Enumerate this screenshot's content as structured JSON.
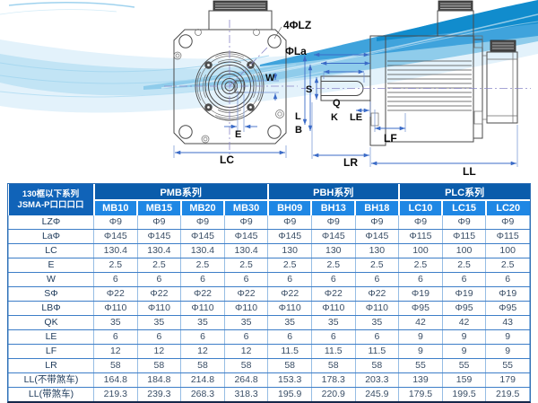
{
  "drawings": {
    "front": {
      "bolt_holes": "4ΦLZ",
      "boss_dia": "ΦLa",
      "key_width": "W",
      "key_offset": "E",
      "frame_size": "LC"
    },
    "side": {
      "shaft_dia": "S",
      "key_q": "Q",
      "key_k": "K",
      "pilot_le": "LE",
      "dim_l": "L",
      "dim_b": "B",
      "flange_lf": "LF",
      "shaft_lr": "LR",
      "body_ll": "LL"
    }
  },
  "table": {
    "corner": {
      "line1": "130框以下系列",
      "line2": "JSMA-P口口口口"
    },
    "series": [
      {
        "label": "PMB系列",
        "span": 4
      },
      {
        "label": "PBH系列",
        "span": 3
      },
      {
        "label": "PLC系列",
        "span": 3
      }
    ],
    "models": [
      "MB10",
      "MB15",
      "MB20",
      "MB30",
      "BH09",
      "BH13",
      "BH18",
      "LC10",
      "LC15",
      "LC20"
    ],
    "rows": [
      {
        "label": "LZΦ",
        "values": [
          "Φ9",
          "Φ9",
          "Φ9",
          "Φ9",
          "Φ9",
          "Φ9",
          "Φ9",
          "Φ9",
          "Φ9",
          "Φ9"
        ]
      },
      {
        "label": "LaΦ",
        "values": [
          "Φ145",
          "Φ145",
          "Φ145",
          "Φ145",
          "Φ145",
          "Φ145",
          "Φ145",
          "Φ115",
          "Φ115",
          "Φ115"
        ]
      },
      {
        "label": "LC",
        "values": [
          "130.4",
          "130.4",
          "130.4",
          "130.4",
          "130",
          "130",
          "130",
          "100",
          "100",
          "100"
        ]
      },
      {
        "label": "E",
        "values": [
          "2.5",
          "2.5",
          "2.5",
          "2.5",
          "2.5",
          "2.5",
          "2.5",
          "2.5",
          "2.5",
          "2.5"
        ]
      },
      {
        "label": "W",
        "values": [
          "6",
          "6",
          "6",
          "6",
          "6",
          "6",
          "6",
          "6",
          "6",
          "6"
        ]
      },
      {
        "label": "SΦ",
        "values": [
          "Φ22",
          "Φ22",
          "Φ22",
          "Φ22",
          "Φ22",
          "Φ22",
          "Φ22",
          "Φ19",
          "Φ19",
          "Φ19"
        ]
      },
      {
        "label": "LBΦ",
        "values": [
          "Φ110",
          "Φ110",
          "Φ110",
          "Φ110",
          "Φ110",
          "Φ110",
          "Φ110",
          "Φ95",
          "Φ95",
          "Φ95"
        ]
      },
      {
        "label": "QK",
        "values": [
          "35",
          "35",
          "35",
          "35",
          "35",
          "35",
          "35",
          "42",
          "42",
          "43"
        ]
      },
      {
        "label": "LE",
        "values": [
          "6",
          "6",
          "6",
          "6",
          "6",
          "6",
          "6",
          "9",
          "9",
          "9"
        ]
      },
      {
        "label": "LF",
        "values": [
          "12",
          "12",
          "12",
          "12",
          "11.5",
          "11.5",
          "11.5",
          "9",
          "9",
          "9"
        ]
      },
      {
        "label": "LR",
        "values": [
          "58",
          "58",
          "58",
          "58",
          "58",
          "58",
          "58",
          "55",
          "55",
          "55"
        ]
      },
      {
        "label": "LL(不带煞车)",
        "values": [
          "164.8",
          "184.8",
          "214.8",
          "264.8",
          "153.3",
          "178.3",
          "203.3",
          "139",
          "159",
          "179"
        ]
      },
      {
        "label": "LL(带煞车)",
        "values": [
          "219.3",
          "239.3",
          "268.3",
          "318.3",
          "195.9",
          "220.9",
          "245.9",
          "179.5",
          "199.5",
          "219.5"
        ]
      }
    ]
  },
  "colors": {
    "header_corner": "#1063b8",
    "header_series": "#0a5cab",
    "header_model": "#1f87e4",
    "grid_horizontal": "#3d7ec8",
    "grid_vertical": "#96bde4",
    "dimension_line": "#3b6bc7",
    "swoosh_dark": "#118ccd"
  }
}
